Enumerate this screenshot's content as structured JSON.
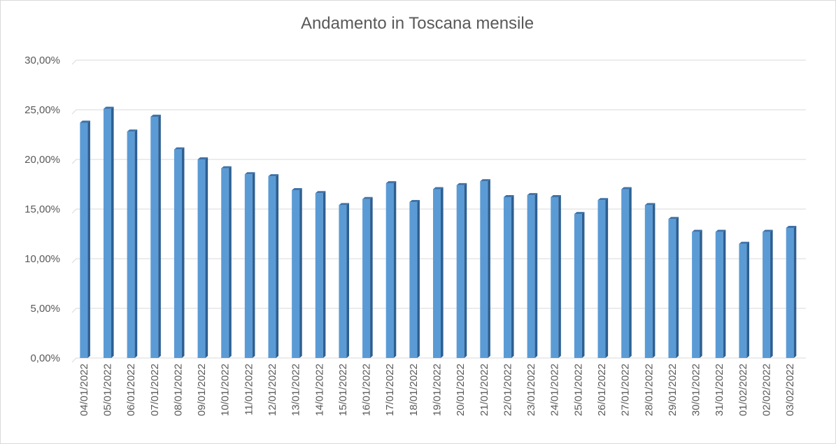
{
  "chart_data": {
    "type": "bar",
    "title": "Andamento in Toscana mensile",
    "xlabel": "",
    "ylabel": "",
    "ylim": [
      0,
      0.3
    ],
    "ytick_values": [
      0,
      0.05,
      0.1,
      0.15,
      0.2,
      0.25,
      0.3
    ],
    "ytick_labels": [
      "0,00%",
      "5,00%",
      "10,00%",
      "15,00%",
      "20,00%",
      "25,00%",
      "30,00%"
    ],
    "grid": true,
    "legend": "none",
    "bar_color": "#5b9bd5",
    "categories": [
      "04/01/2022",
      "05/01/2022",
      "06/01/2022",
      "07/01/2022",
      "08/01/2022",
      "09/01/2022",
      "10/01/2022",
      "11/01/2022",
      "12/01/2022",
      "13/01/2022",
      "14/01/2022",
      "15/01/2022",
      "16/01/2022",
      "17/01/2022",
      "18/01/2022",
      "19/01/2022",
      "20/01/2022",
      "21/01/2022",
      "22/01/2022",
      "23/01/2022",
      "24/01/2022",
      "25/01/2022",
      "26/01/2022",
      "27/01/2022",
      "28/01/2022",
      "29/01/2022",
      "30/01/2022",
      "31/01/2022",
      "01/02/2022",
      "02/02/2022",
      "03/02/2022"
    ],
    "values": [
      0.237,
      0.251,
      0.228,
      0.243,
      0.21,
      0.2,
      0.191,
      0.185,
      0.183,
      0.169,
      0.166,
      0.154,
      0.16,
      0.176,
      0.157,
      0.17,
      0.174,
      0.178,
      0.162,
      0.164,
      0.162,
      0.145,
      0.159,
      0.17,
      0.154,
      0.14,
      0.127,
      0.127,
      0.115,
      0.127,
      0.131
    ]
  }
}
